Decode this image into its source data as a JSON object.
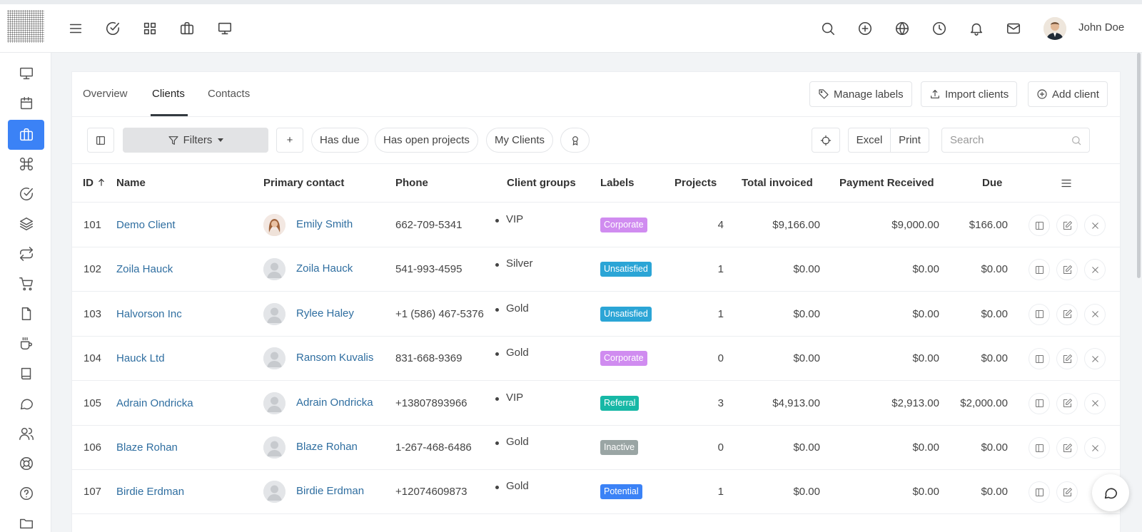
{
  "topbar": {
    "left_icons": [
      "menu-icon",
      "check-circle-icon",
      "grid-icon",
      "briefcase-icon",
      "monitor-icon"
    ],
    "right_icons": [
      "search-icon",
      "plus-circle-icon",
      "globe-icon",
      "clock-icon",
      "bell-icon",
      "mail-icon"
    ],
    "user_name": "John Doe"
  },
  "sidebar": {
    "items": [
      "monitor-icon",
      "calendar-icon",
      "briefcase-icon",
      "command-icon",
      "check-circle-icon",
      "layers-icon",
      "repeat-icon",
      "cart-icon",
      "file-icon",
      "coffee-icon",
      "book-icon",
      "message-icon",
      "users-icon",
      "lifebuoy-icon",
      "help-icon",
      "folder-icon"
    ],
    "active_index": 2
  },
  "tabs": [
    {
      "label": "Overview"
    },
    {
      "label": "Clients"
    },
    {
      "label": "Contacts"
    }
  ],
  "header_buttons": {
    "manage_labels": "Manage labels",
    "import_clients": "Import clients",
    "add_client": "Add client"
  },
  "toolbar": {
    "filters": "Filters",
    "add": "+",
    "quick_filters": [
      "Has due",
      "Has open projects",
      "My Clients"
    ],
    "excel": "Excel",
    "print": "Print",
    "search_placeholder": "Search"
  },
  "columns": {
    "id": "ID",
    "name": "Name",
    "primary_contact": "Primary contact",
    "phone": "Phone",
    "client_groups": "Client groups",
    "labels": "Labels",
    "projects": "Projects",
    "total_invoiced": "Total invoiced",
    "payment_received": "Payment Received",
    "due": "Due"
  },
  "label_colors": {
    "Corporate": "#d08cf0",
    "Unsatisfied": "#2ba5d6",
    "Referral": "#17b8a6",
    "Inactive": "#9aa5a4",
    "Potential": "#3b82f6"
  },
  "rows": [
    {
      "id": "101",
      "name": "Demo Client",
      "contact": "Emily Smith",
      "phone": "662-709-5341",
      "group": "VIP",
      "label": "Corporate",
      "projects": "4",
      "invoiced": "$9,166.00",
      "received": "$9,000.00",
      "due": "$166.00",
      "photo": true
    },
    {
      "id": "102",
      "name": "Zoila Hauck",
      "contact": "Zoila Hauck",
      "phone": "541-993-4595",
      "group": "Silver",
      "label": "Unsatisfied",
      "projects": "1",
      "invoiced": "$0.00",
      "received": "$0.00",
      "due": "$0.00",
      "photo": false
    },
    {
      "id": "103",
      "name": "Halvorson Inc",
      "contact": "Rylee Haley",
      "phone": "+1 (586) 467-5376",
      "group": "Gold",
      "label": "Unsatisfied",
      "projects": "1",
      "invoiced": "$0.00",
      "received": "$0.00",
      "due": "$0.00",
      "photo": false
    },
    {
      "id": "104",
      "name": "Hauck Ltd",
      "contact": "Ransom Kuvalis",
      "phone": "831-668-9369",
      "group": "Gold",
      "label": "Corporate",
      "projects": "0",
      "invoiced": "$0.00",
      "received": "$0.00",
      "due": "$0.00",
      "photo": false
    },
    {
      "id": "105",
      "name": "Adrain Ondricka",
      "contact": "Adrain Ondricka",
      "phone": "+13807893966",
      "group": "VIP",
      "label": "Referral",
      "projects": "3",
      "invoiced": "$4,913.00",
      "received": "$2,913.00",
      "due": "$2,000.00",
      "photo": false
    },
    {
      "id": "106",
      "name": "Blaze Rohan",
      "contact": "Blaze Rohan",
      "phone": "1-267-468-6486",
      "group": "Gold",
      "label": "Inactive",
      "projects": "0",
      "invoiced": "$0.00",
      "received": "$0.00",
      "due": "$0.00",
      "photo": false
    },
    {
      "id": "107",
      "name": "Birdie Erdman",
      "contact": "Birdie Erdman",
      "phone": "+12074609873",
      "group": "Gold",
      "label": "Potential",
      "projects": "1",
      "invoiced": "$0.00",
      "received": "$0.00",
      "due": "$0.00",
      "photo": false
    }
  ]
}
